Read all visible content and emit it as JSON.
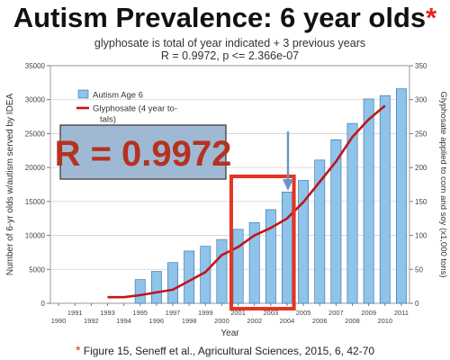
{
  "headline": {
    "text": "Autism Prevalence: 6 year olds",
    "asterisk": "*"
  },
  "citation": {
    "asterisk": "*",
    "text": "Figure 15, Seneff et al., Agricultural Sciences, 2015, 6, 42-70"
  },
  "callout": {
    "text": "R = 0.9972",
    "text_color": "#b5321f",
    "box_color": "#9fb9d4"
  },
  "chart_data": {
    "type": "bar",
    "title": "glyphosate is total of year indicated + 3 previous years",
    "subtitle": "R = 0.9972, p <= 2.366e-07",
    "xlabel": "Year",
    "ylabel": "Number of 6-yr olds w/autism served by IDEA",
    "y2label": "Glyphosate applied to corn and soy (x1,000 tons)",
    "x": [
      1990,
      1991,
      1992,
      1993,
      1994,
      1995,
      1996,
      1997,
      1998,
      1999,
      2000,
      2001,
      2002,
      2003,
      2004,
      2005,
      2006,
      2007,
      2008,
      2009,
      2010,
      2011
    ],
    "ylim": [
      0,
      35000
    ],
    "y2lim": [
      0,
      350
    ],
    "yticks": [
      0,
      5000,
      10000,
      15000,
      20000,
      25000,
      30000,
      35000
    ],
    "y2ticks": [
      0,
      50,
      100,
      150,
      200,
      250,
      300,
      350
    ],
    "grid": true,
    "legend_position": "top-left",
    "series": [
      {
        "name": "Autism Age 6",
        "type": "bar",
        "axis": "left",
        "color": "#8fc3ea",
        "values": [
          null,
          null,
          null,
          null,
          null,
          3500,
          4700,
          6000,
          7700,
          8400,
          9400,
          10900,
          11900,
          13800,
          16400,
          18100,
          21100,
          24100,
          26500,
          30100,
          30600,
          31600
        ]
      },
      {
        "name": "Glyphosate (4 year to-tals)",
        "type": "line",
        "axis": "right",
        "color": "#c0151b",
        "values": [
          null,
          null,
          null,
          9,
          9,
          12,
          16,
          20,
          33,
          46,
          71,
          83,
          100,
          111,
          125,
          149,
          179,
          209,
          245,
          271,
          291,
          null
        ]
      }
    ],
    "highlight": {
      "from": 2001,
      "to": 2004,
      "color": "#e53421"
    },
    "annotation_arrow": {
      "x": 2004,
      "color": "#6d94c4"
    }
  }
}
